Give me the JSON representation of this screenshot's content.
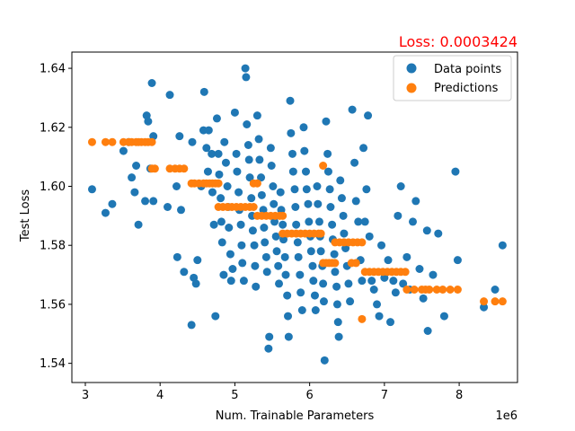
{
  "chart_data": {
    "type": "scatter",
    "title": "Loss: 0.0003424",
    "title_color": "#ff0000",
    "xlabel": "Num. Trainable Parameters",
    "ylabel": "Test Loss",
    "x_offset_label": "1e6",
    "xlim": [
      2.82,
      8.78
    ],
    "ylim": [
      1.5335,
      1.6455
    ],
    "x_ticks": [
      3,
      4,
      5,
      6,
      7,
      8
    ],
    "x_tick_labels": [
      "3",
      "4",
      "5",
      "6",
      "7",
      "8"
    ],
    "y_ticks": [
      1.54,
      1.56,
      1.58,
      1.6,
      1.62,
      1.64
    ],
    "y_tick_labels": [
      "1.54",
      "1.56",
      "1.58",
      "1.60",
      "1.62",
      "1.64"
    ],
    "grid": false,
    "legend_position": "top-right",
    "series": [
      {
        "name": "Data points",
        "color": "#1f77b4",
        "points": [
          [
            3.09,
            1.599
          ],
          [
            3.27,
            1.591
          ],
          [
            3.36,
            1.594
          ],
          [
            3.51,
            1.612
          ],
          [
            3.58,
            1.615
          ],
          [
            3.62,
            1.603
          ],
          [
            3.68,
            1.607
          ],
          [
            3.66,
            1.598
          ],
          [
            3.71,
            1.587
          ],
          [
            3.82,
            1.624
          ],
          [
            3.84,
            1.622
          ],
          [
            3.8,
            1.595
          ],
          [
            3.89,
            1.635
          ],
          [
            3.91,
            1.617
          ],
          [
            3.87,
            1.606
          ],
          [
            3.91,
            1.595
          ],
          [
            4.13,
            1.631
          ],
          [
            4.1,
            1.593
          ],
          [
            4.22,
            1.6
          ],
          [
            4.26,
            1.617
          ],
          [
            4.28,
            1.592
          ],
          [
            4.23,
            1.576
          ],
          [
            4.32,
            1.571
          ],
          [
            4.43,
            1.615
          ],
          [
            4.45,
            1.569
          ],
          [
            4.42,
            1.553
          ],
          [
            4.5,
            1.575
          ],
          [
            4.48,
            1.567
          ],
          [
            4.55,
            1.6
          ],
          [
            4.58,
            1.619
          ],
          [
            4.59,
            1.632
          ],
          [
            4.62,
            1.613
          ],
          [
            4.64,
            1.605
          ],
          [
            4.65,
            1.619
          ],
          [
            4.69,
            1.611
          ],
          [
            4.7,
            1.598
          ],
          [
            4.72,
            1.587
          ],
          [
            4.74,
            1.556
          ],
          [
            4.76,
            1.623
          ],
          [
            4.78,
            1.611
          ],
          [
            4.79,
            1.604
          ],
          [
            4.81,
            1.596
          ],
          [
            4.82,
            1.588
          ],
          [
            4.83,
            1.581
          ],
          [
            4.85,
            1.57
          ],
          [
            4.86,
            1.615
          ],
          [
            4.88,
            1.608
          ],
          [
            4.9,
            1.6
          ],
          [
            4.91,
            1.593
          ],
          [
            4.92,
            1.586
          ],
          [
            4.94,
            1.577
          ],
          [
            4.95,
            1.568
          ],
          [
            4.97,
            1.572
          ],
          [
            5.0,
            1.625
          ],
          [
            5.02,
            1.611
          ],
          [
            5.03,
            1.605
          ],
          [
            5.05,
            1.598
          ],
          [
            5.06,
            1.592
          ],
          [
            5.08,
            1.587
          ],
          [
            5.09,
            1.58
          ],
          [
            5.1,
            1.574
          ],
          [
            5.12,
            1.568
          ],
          [
            5.14,
            1.64
          ],
          [
            5.15,
            1.637
          ],
          [
            5.16,
            1.621
          ],
          [
            5.18,
            1.614
          ],
          [
            5.19,
            1.609
          ],
          [
            5.2,
            1.603
          ],
          [
            5.22,
            1.596
          ],
          [
            5.23,
            1.59
          ],
          [
            5.24,
            1.585
          ],
          [
            5.26,
            1.58
          ],
          [
            5.27,
            1.573
          ],
          [
            5.28,
            1.566
          ],
          [
            5.3,
            1.624
          ],
          [
            5.32,
            1.616
          ],
          [
            5.33,
            1.609
          ],
          [
            5.35,
            1.603
          ],
          [
            5.36,
            1.597
          ],
          [
            5.38,
            1.592
          ],
          [
            5.39,
            1.586
          ],
          [
            5.4,
            1.581
          ],
          [
            5.42,
            1.576
          ],
          [
            5.43,
            1.571
          ],
          [
            5.45,
            1.545
          ],
          [
            5.46,
            1.549
          ],
          [
            5.48,
            1.613
          ],
          [
            5.49,
            1.607
          ],
          [
            5.51,
            1.6
          ],
          [
            5.52,
            1.594
          ],
          [
            5.53,
            1.588
          ],
          [
            5.55,
            1.583
          ],
          [
            5.56,
            1.578
          ],
          [
            5.58,
            1.573
          ],
          [
            5.59,
            1.567
          ],
          [
            5.61,
            1.598
          ],
          [
            5.62,
            1.592
          ],
          [
            5.64,
            1.587
          ],
          [
            5.65,
            1.582
          ],
          [
            5.67,
            1.576
          ],
          [
            5.68,
            1.57
          ],
          [
            5.7,
            1.563
          ],
          [
            5.71,
            1.556
          ],
          [
            5.72,
            1.549
          ],
          [
            5.74,
            1.629
          ],
          [
            5.75,
            1.618
          ],
          [
            5.77,
            1.611
          ],
          [
            5.78,
            1.605
          ],
          [
            5.8,
            1.599
          ],
          [
            5.81,
            1.593
          ],
          [
            5.82,
            1.587
          ],
          [
            5.84,
            1.581
          ],
          [
            5.85,
            1.576
          ],
          [
            5.87,
            1.57
          ],
          [
            5.88,
            1.564
          ],
          [
            5.9,
            1.558
          ],
          [
            5.92,
            1.62
          ],
          [
            5.93,
            1.612
          ],
          [
            5.95,
            1.605
          ],
          [
            5.96,
            1.599
          ],
          [
            5.98,
            1.594
          ],
          [
            5.99,
            1.588
          ],
          [
            6.01,
            1.583
          ],
          [
            6.02,
            1.578
          ],
          [
            6.04,
            1.573
          ],
          [
            6.05,
            1.568
          ],
          [
            6.07,
            1.563
          ],
          [
            6.08,
            1.558
          ],
          [
            6.1,
            1.6
          ],
          [
            6.11,
            1.594
          ],
          [
            6.13,
            1.588
          ],
          [
            6.14,
            1.583
          ],
          [
            6.15,
            1.578
          ],
          [
            6.17,
            1.573
          ],
          [
            6.18,
            1.567
          ],
          [
            6.19,
            1.561
          ],
          [
            6.2,
            1.541
          ],
          [
            6.22,
            1.622
          ],
          [
            6.24,
            1.611
          ],
          [
            6.25,
            1.605
          ],
          [
            6.27,
            1.599
          ],
          [
            6.28,
            1.593
          ],
          [
            6.3,
            1.587
          ],
          [
            6.31,
            1.582
          ],
          [
            6.33,
            1.577
          ],
          [
            6.34,
            1.571
          ],
          [
            6.36,
            1.566
          ],
          [
            6.37,
            1.56
          ],
          [
            6.38,
            1.554
          ],
          [
            6.39,
            1.549
          ],
          [
            6.41,
            1.602
          ],
          [
            6.43,
            1.596
          ],
          [
            6.45,
            1.59
          ],
          [
            6.46,
            1.584
          ],
          [
            6.48,
            1.579
          ],
          [
            6.5,
            1.573
          ],
          [
            6.52,
            1.567
          ],
          [
            6.54,
            1.561
          ],
          [
            6.57,
            1.626
          ],
          [
            6.6,
            1.608
          ],
          [
            6.62,
            1.595
          ],
          [
            6.65,
            1.588
          ],
          [
            6.68,
            1.575
          ],
          [
            6.7,
            1.568
          ],
          [
            6.72,
            1.613
          ],
          [
            6.74,
            1.588
          ],
          [
            6.76,
            1.599
          ],
          [
            6.78,
            1.624
          ],
          [
            6.8,
            1.583
          ],
          [
            6.83,
            1.568
          ],
          [
            6.86,
            1.565
          ],
          [
            6.9,
            1.56
          ],
          [
            6.93,
            1.556
          ],
          [
            6.96,
            1.58
          ],
          [
            7.0,
            1.569
          ],
          [
            7.05,
            1.575
          ],
          [
            7.08,
            1.554
          ],
          [
            7.12,
            1.568
          ],
          [
            7.15,
            1.564
          ],
          [
            7.18,
            1.59
          ],
          [
            7.22,
            1.6
          ],
          [
            7.25,
            1.567
          ],
          [
            7.3,
            1.576
          ],
          [
            7.34,
            1.565
          ],
          [
            7.38,
            1.588
          ],
          [
            7.42,
            1.595
          ],
          [
            7.47,
            1.572
          ],
          [
            7.52,
            1.562
          ],
          [
            7.57,
            1.585
          ],
          [
            7.58,
            1.551
          ],
          [
            7.65,
            1.57
          ],
          [
            7.72,
            1.584
          ],
          [
            7.8,
            1.556
          ],
          [
            7.95,
            1.605
          ],
          [
            7.98,
            1.575
          ],
          [
            8.33,
            1.559
          ],
          [
            8.48,
            1.565
          ],
          [
            8.58,
            1.58
          ]
        ]
      },
      {
        "name": "Predictions",
        "color": "#ff7f0e",
        "points": [
          [
            3.09,
            1.615
          ],
          [
            3.27,
            1.615
          ],
          [
            3.36,
            1.615
          ],
          [
            3.51,
            1.615
          ],
          [
            3.58,
            1.615
          ],
          [
            3.62,
            1.615
          ],
          [
            3.68,
            1.615
          ],
          [
            3.71,
            1.615
          ],
          [
            3.75,
            1.615
          ],
          [
            3.8,
            1.615
          ],
          [
            3.84,
            1.615
          ],
          [
            3.89,
            1.615
          ],
          [
            3.89,
            1.606
          ],
          [
            3.93,
            1.606
          ],
          [
            4.13,
            1.606
          ],
          [
            4.2,
            1.606
          ],
          [
            4.26,
            1.606
          ],
          [
            4.32,
            1.606
          ],
          [
            4.42,
            1.601
          ],
          [
            4.46,
            1.601
          ],
          [
            4.52,
            1.601
          ],
          [
            4.58,
            1.601
          ],
          [
            4.62,
            1.601
          ],
          [
            4.66,
            1.601
          ],
          [
            4.7,
            1.601
          ],
          [
            4.74,
            1.601
          ],
          [
            4.78,
            1.601
          ],
          [
            4.78,
            1.593
          ],
          [
            4.84,
            1.593
          ],
          [
            4.9,
            1.593
          ],
          [
            4.96,
            1.593
          ],
          [
            5.02,
            1.593
          ],
          [
            5.08,
            1.593
          ],
          [
            5.14,
            1.593
          ],
          [
            5.2,
            1.593
          ],
          [
            5.25,
            1.593
          ],
          [
            5.25,
            1.601
          ],
          [
            5.3,
            1.601
          ],
          [
            5.3,
            1.59
          ],
          [
            5.36,
            1.59
          ],
          [
            5.42,
            1.59
          ],
          [
            5.48,
            1.59
          ],
          [
            5.54,
            1.59
          ],
          [
            5.6,
            1.59
          ],
          [
            5.64,
            1.59
          ],
          [
            5.64,
            1.584
          ],
          [
            5.7,
            1.584
          ],
          [
            5.76,
            1.584
          ],
          [
            5.82,
            1.584
          ],
          [
            5.88,
            1.584
          ],
          [
            5.94,
            1.584
          ],
          [
            6.0,
            1.584
          ],
          [
            6.06,
            1.584
          ],
          [
            6.12,
            1.584
          ],
          [
            6.15,
            1.584
          ],
          [
            6.18,
            1.607
          ],
          [
            6.18,
            1.574
          ],
          [
            6.22,
            1.574
          ],
          [
            6.26,
            1.574
          ],
          [
            6.3,
            1.574
          ],
          [
            6.34,
            1.574
          ],
          [
            6.34,
            1.581
          ],
          [
            6.4,
            1.581
          ],
          [
            6.46,
            1.581
          ],
          [
            6.52,
            1.581
          ],
          [
            6.58,
            1.581
          ],
          [
            6.64,
            1.581
          ],
          [
            6.7,
            1.581
          ],
          [
            6.56,
            1.574
          ],
          [
            6.62,
            1.574
          ],
          [
            6.7,
            1.555
          ],
          [
            6.74,
            1.571
          ],
          [
            6.8,
            1.571
          ],
          [
            6.86,
            1.571
          ],
          [
            6.92,
            1.571
          ],
          [
            6.98,
            1.571
          ],
          [
            7.04,
            1.571
          ],
          [
            7.1,
            1.571
          ],
          [
            7.16,
            1.571
          ],
          [
            7.22,
            1.571
          ],
          [
            7.28,
            1.571
          ],
          [
            7.3,
            1.565
          ],
          [
            7.4,
            1.565
          ],
          [
            7.5,
            1.565
          ],
          [
            7.55,
            1.565
          ],
          [
            7.6,
            1.565
          ],
          [
            7.7,
            1.565
          ],
          [
            7.78,
            1.565
          ],
          [
            7.88,
            1.565
          ],
          [
            7.98,
            1.565
          ],
          [
            8.33,
            1.561
          ],
          [
            8.48,
            1.561
          ],
          [
            8.58,
            1.561
          ]
        ]
      }
    ]
  }
}
